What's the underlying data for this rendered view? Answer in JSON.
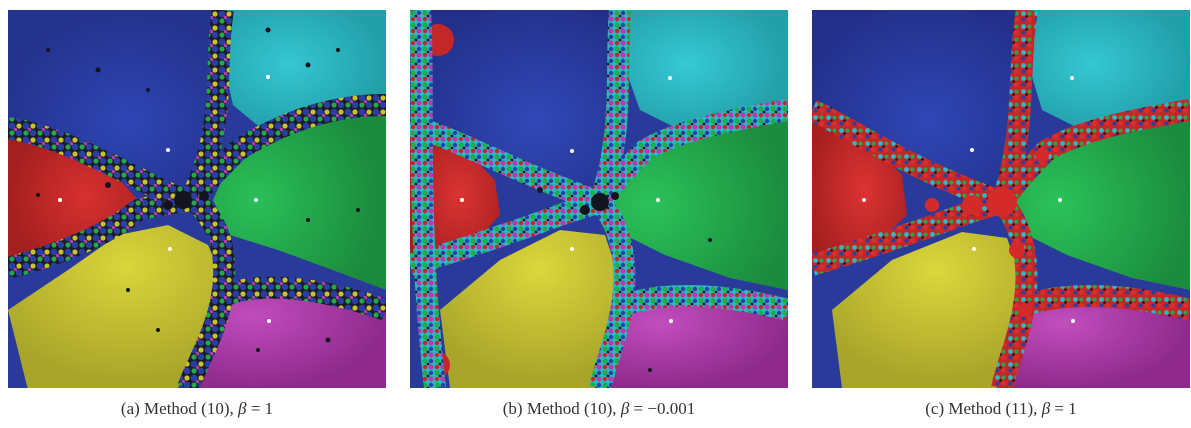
{
  "panels": [
    {
      "caption_label": "(a)",
      "caption_method": "Method (10),",
      "caption_beta_symbol": "β",
      "caption_beta_value": "= 1",
      "variant": "a",
      "basin_colors": {
        "red": "#c42727",
        "blue": "#2a3fa6",
        "cyan": "#2bb9c5",
        "green": "#23a84a",
        "yellow": "#c6c32d",
        "magenta": "#b43bb0"
      }
    },
    {
      "caption_label": "(b)",
      "caption_method": "Method (10),",
      "caption_beta_symbol": "β",
      "caption_beta_value": "= −0.001",
      "variant": "b",
      "basin_colors": {
        "red": "#c42727",
        "blue": "#2a3fa6",
        "cyan": "#2bb9c5",
        "green": "#23a84a",
        "yellow": "#c6c32d",
        "magenta": "#b43bb0"
      }
    },
    {
      "caption_label": "(c)",
      "caption_method": "Method (11),",
      "caption_beta_symbol": "β",
      "caption_beta_value": "= 1",
      "variant": "c",
      "basin_colors": {
        "red": "#c42727",
        "blue": "#2a3fa6",
        "cyan": "#2bb9c5",
        "green": "#23a84a",
        "yellow": "#c6c32d",
        "magenta": "#b43bb0"
      }
    }
  ]
}
